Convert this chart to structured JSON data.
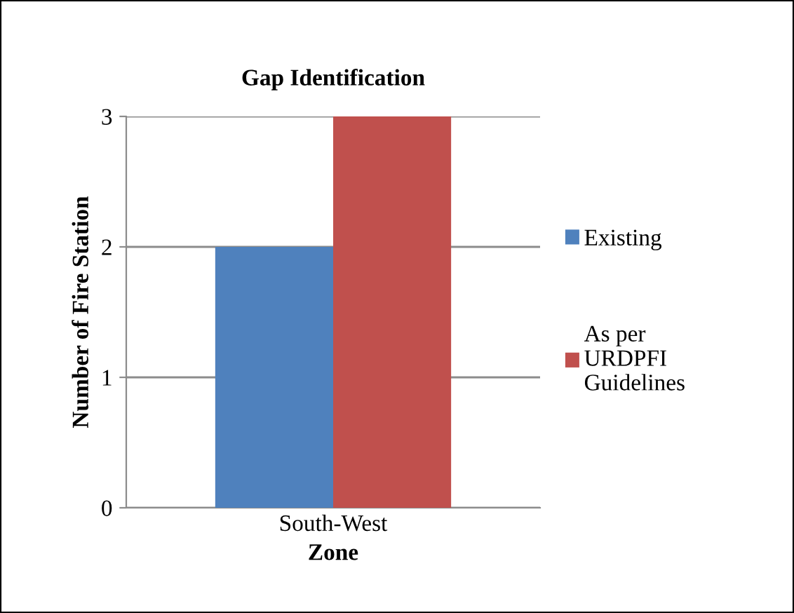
{
  "chart_data": {
    "type": "bar",
    "title": "Gap Identification",
    "xlabel": "Zone",
    "ylabel": "Number of Fire Station",
    "categories": [
      "South-West"
    ],
    "series": [
      {
        "name": "Existing",
        "color": "#4f81bd",
        "values": [
          2
        ]
      },
      {
        "name": "As per\nURDPFI\nGuidelines",
        "color": "#c0504d",
        "values": [
          3
        ]
      }
    ],
    "ylim": [
      0,
      3
    ],
    "yticks": [
      0,
      1,
      2,
      3
    ],
    "grid": "y",
    "legend": "right"
  }
}
